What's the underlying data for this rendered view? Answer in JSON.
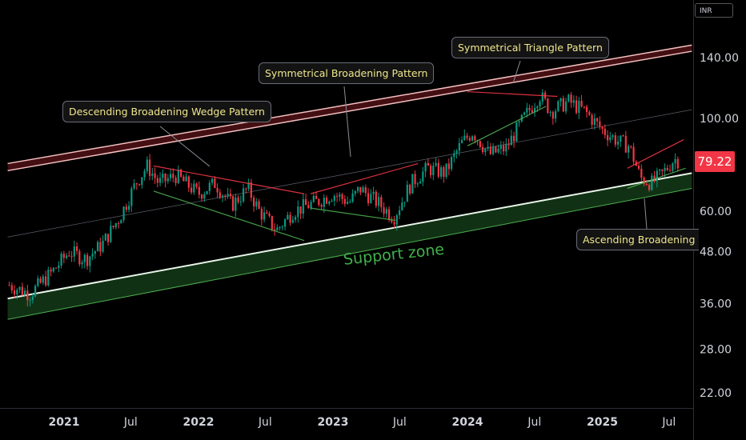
{
  "chart_data": {
    "type": "candlestick",
    "currency": "INR",
    "last_price_label": "79.22",
    "y_scale": "log",
    "ylim": [
      20,
      165
    ],
    "xlim": [
      "2020-08-01",
      "2025-09-01"
    ],
    "y_tick_labels": [
      "140.00",
      "100.00",
      "60.00",
      "48.00",
      "36.00",
      "28.00",
      "22.00"
    ],
    "y_ticks": [
      140,
      100,
      60,
      48,
      36,
      28,
      22
    ],
    "x_tick_labels": [
      {
        "label": "2021",
        "date": "2021-01-01",
        "bold": true
      },
      {
        "label": "Jul",
        "date": "2021-07-01",
        "bold": false
      },
      {
        "label": "2022",
        "date": "2022-01-01",
        "bold": true
      },
      {
        "label": "Jul",
        "date": "2022-07-01",
        "bold": false
      },
      {
        "label": "2023",
        "date": "2023-01-01",
        "bold": true
      },
      {
        "label": "Jul",
        "date": "2023-07-01",
        "bold": false
      },
      {
        "label": "2024",
        "date": "2024-01-01",
        "bold": true
      },
      {
        "label": "Jul",
        "date": "2024-07-01",
        "bold": false
      },
      {
        "label": "2025",
        "date": "2025-01-01",
        "bold": true
      },
      {
        "label": "Jul",
        "date": "2025-07-01",
        "bold": false
      }
    ],
    "price_path": [
      [
        "2020-08-01",
        40
      ],
      [
        "2020-10-01",
        38
      ],
      [
        "2020-12-01",
        43
      ],
      [
        "2021-01-15",
        48
      ],
      [
        "2021-03-01",
        46
      ],
      [
        "2021-04-15",
        50
      ],
      [
        "2021-06-01",
        58
      ],
      [
        "2021-07-15",
        70
      ],
      [
        "2021-08-15",
        77
      ],
      [
        "2021-09-15",
        70
      ],
      [
        "2021-11-01",
        73
      ],
      [
        "2022-01-01",
        66
      ],
      [
        "2022-02-15",
        70
      ],
      [
        "2022-04-01",
        62
      ],
      [
        "2022-05-15",
        68
      ],
      [
        "2022-06-15",
        60
      ],
      [
        "2022-08-01",
        54
      ],
      [
        "2022-09-15",
        60
      ],
      [
        "2022-11-15",
        63
      ],
      [
        "2023-01-01",
        66
      ],
      [
        "2023-02-15",
        63
      ],
      [
        "2023-03-15",
        68
      ],
      [
        "2023-05-01",
        63
      ],
      [
        "2023-06-15",
        58
      ],
      [
        "2023-08-01",
        70
      ],
      [
        "2023-09-15",
        76
      ],
      [
        "2023-11-01",
        74
      ],
      [
        "2023-12-15",
        87
      ],
      [
        "2024-01-15",
        93
      ],
      [
        "2024-03-01",
        82
      ],
      [
        "2024-04-15",
        85
      ],
      [
        "2024-06-01",
        100
      ],
      [
        "2024-07-15",
        114
      ],
      [
        "2024-08-15",
        104
      ],
      [
        "2024-10-01",
        110
      ],
      [
        "2024-11-15",
        104
      ],
      [
        "2025-01-01",
        94
      ],
      [
        "2025-02-15",
        88
      ],
      [
        "2025-03-15",
        86
      ],
      [
        "2025-04-15",
        72
      ],
      [
        "2025-05-15",
        70
      ],
      [
        "2025-06-15",
        74
      ],
      [
        "2025-07-15",
        80
      ],
      [
        "2025-08-01",
        79.22
      ]
    ],
    "support_zone": {
      "label": "Support zone",
      "upper": [
        [
          "2020-08-01",
          37
        ],
        [
          "2025-09-01",
          74
        ]
      ],
      "lower": [
        [
          "2020-08-01",
          33
        ],
        [
          "2025-09-01",
          68
        ]
      ]
    },
    "resistance_channel": {
      "upper": [
        [
          "2020-08-01",
          78
        ],
        [
          "2025-09-01",
          150
        ]
      ],
      "lower": [
        [
          "2020-08-01",
          75
        ],
        [
          "2025-09-01",
          145
        ]
      ]
    },
    "midline": [
      [
        "2020-08-01",
        52
      ],
      [
        "2025-09-01",
        105
      ]
    ],
    "annotations": [
      {
        "label": "Descending Broadening Wedge Pattern"
      },
      {
        "label": "Symmetrical Broadening Pattern"
      },
      {
        "label": "Symmetrical Triangle Pattern"
      },
      {
        "label": "Ascending Broadening W"
      }
    ]
  },
  "colors": {
    "up": "#089981",
    "down": "#f23645",
    "support": "#2e7d32",
    "support_line": "#4caf50",
    "resistance": "#f23645",
    "callout_text": "#f0e78c"
  }
}
